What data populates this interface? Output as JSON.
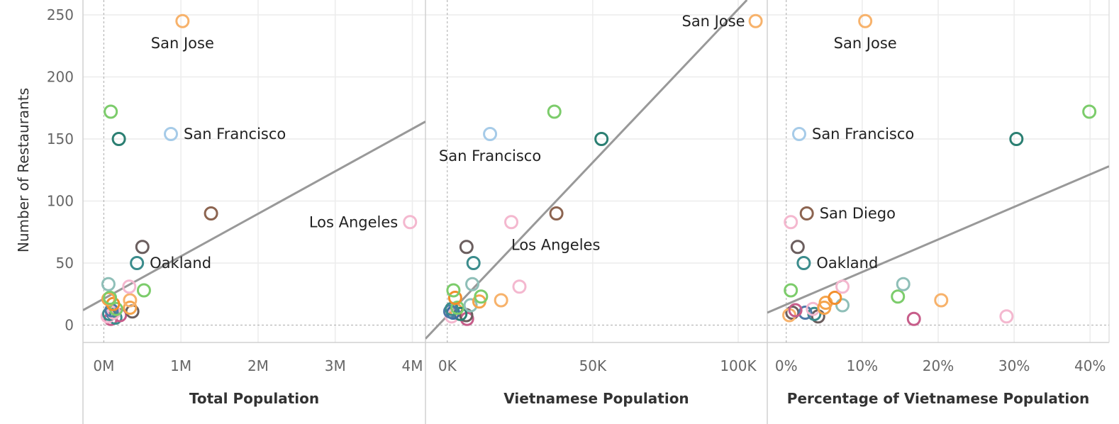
{
  "chart_data": {
    "type": "scatter",
    "ylabel": "Number of Restaurants",
    "ylim": [
      -14,
      262
    ],
    "y_ticks": [
      "0",
      "50",
      "100",
      "150",
      "200",
      "250"
    ],
    "y_tick_values": [
      0,
      50,
      100,
      150,
      200,
      250
    ],
    "grid": true,
    "marker": "hollow circle",
    "panels": [
      {
        "xlabel": "Total Population",
        "xlim": [
          -270000,
          4170000
        ],
        "x_ticks": [
          "0M",
          "1M",
          "2M",
          "3M",
          "4M"
        ],
        "x_tick_values": [
          0,
          1000000,
          2000000,
          3000000,
          4000000
        ],
        "trend_line": [
          [
            -270000,
            12
          ],
          [
            4170000,
            164
          ]
        ],
        "points": [
          {
            "x": 1020000,
            "y": 245,
            "color": "#f7b26b",
            "label": "San Jose"
          },
          {
            "x": 870000,
            "y": 154,
            "color": "#a6cbe8",
            "label": "San Francisco"
          },
          {
            "x": 3970000,
            "y": 83,
            "color": "#f4b8cf",
            "label": "Los Angeles"
          },
          {
            "x": 430000,
            "y": 50,
            "color": "#3b8c8c",
            "label": "Oakland"
          },
          {
            "x": 90000,
            "y": 172,
            "color": "#7ccc6b",
            "label": ""
          },
          {
            "x": 195000,
            "y": 150,
            "color": "#2b7f72",
            "label": ""
          },
          {
            "x": 1390000,
            "y": 90,
            "color": "#8c6450",
            "label": ""
          },
          {
            "x": 500000,
            "y": 63,
            "color": "#6b5e5e",
            "label": ""
          },
          {
            "x": 60000,
            "y": 33,
            "color": "#8fbfb8",
            "label": ""
          },
          {
            "x": 330000,
            "y": 31,
            "color": "#f4b8cf",
            "label": ""
          },
          {
            "x": 520000,
            "y": 28,
            "color": "#7ccc6b",
            "label": ""
          },
          {
            "x": 80000,
            "y": 22,
            "color": "#7ccc6b",
            "label": ""
          },
          {
            "x": 60000,
            "y": 21,
            "color": "#f5a44c",
            "label": ""
          },
          {
            "x": 340000,
            "y": 20,
            "color": "#f7b26b",
            "label": ""
          },
          {
            "x": 120000,
            "y": 17,
            "color": "#f28e2b",
            "label": ""
          },
          {
            "x": 340000,
            "y": 14,
            "color": "#f5a44c",
            "label": ""
          },
          {
            "x": 160000,
            "y": 13,
            "color": "#7ccc6b",
            "label": ""
          },
          {
            "x": 370000,
            "y": 11,
            "color": "#6b5e5e",
            "label": ""
          },
          {
            "x": 100000,
            "y": 12,
            "color": "#4e79a7",
            "label": ""
          },
          {
            "x": 130000,
            "y": 10,
            "color": "#f4b8cf",
            "label": ""
          },
          {
            "x": 70000,
            "y": 9,
            "color": "#3b8c8c",
            "label": ""
          },
          {
            "x": 210000,
            "y": 8,
            "color": "#c75d8a",
            "label": ""
          },
          {
            "x": 50000,
            "y": 7,
            "color": "#f4b8cf",
            "label": ""
          },
          {
            "x": 150000,
            "y": 6,
            "color": "#3b8c8c",
            "label": ""
          },
          {
            "x": 90000,
            "y": 5,
            "color": "#c75d8a",
            "label": ""
          },
          {
            "x": 110000,
            "y": 10,
            "color": "#3d6fa3",
            "label": ""
          }
        ]
      },
      {
        "xlabel": "Vietnamese Population",
        "xlim": [
          -7500,
          110000
        ],
        "x_ticks": [
          "0K",
          "50K",
          "100K"
        ],
        "x_tick_values": [
          0,
          50000,
          100000
        ],
        "trend_line": [
          [
            -7500,
            -11
          ],
          [
            103000,
            262
          ]
        ],
        "points": [
          {
            "x": 106000,
            "y": 245,
            "color": "#f7b26b",
            "label": "San Jose"
          },
          {
            "x": 14700,
            "y": 154,
            "color": "#a6cbe8",
            "label": "San Francisco"
          },
          {
            "x": 22000,
            "y": 83,
            "color": "#f4b8cf",
            "label": "Los Angeles"
          },
          {
            "x": 36800,
            "y": 172,
            "color": "#7ccc6b",
            "label": ""
          },
          {
            "x": 53000,
            "y": 150,
            "color": "#2b7f72",
            "label": ""
          },
          {
            "x": 37500,
            "y": 90,
            "color": "#8c6450",
            "label": ""
          },
          {
            "x": 6600,
            "y": 63,
            "color": "#6b5e5e",
            "label": ""
          },
          {
            "x": 9000,
            "y": 50,
            "color": "#3b8c8c",
            "label": ""
          },
          {
            "x": 8600,
            "y": 33,
            "color": "#8fbfb8",
            "label": ""
          },
          {
            "x": 24800,
            "y": 31,
            "color": "#f4b8cf",
            "label": ""
          },
          {
            "x": 2100,
            "y": 28,
            "color": "#7ccc6b",
            "label": ""
          },
          {
            "x": 11600,
            "y": 23,
            "color": "#7ccc6b",
            "label": ""
          },
          {
            "x": 2700,
            "y": 22,
            "color": "#f28e2b",
            "label": ""
          },
          {
            "x": 18500,
            "y": 20,
            "color": "#f7b26b",
            "label": ""
          },
          {
            "x": 11000,
            "y": 19,
            "color": "#f5a44c",
            "label": ""
          },
          {
            "x": 8000,
            "y": 16,
            "color": "#8fbfb8",
            "label": ""
          },
          {
            "x": 3500,
            "y": 14,
            "color": "#7ccc6b",
            "label": ""
          },
          {
            "x": 1500,
            "y": 13,
            "color": "#3b8c8c",
            "label": ""
          },
          {
            "x": 1000,
            "y": 11,
            "color": "#4e79a7",
            "label": ""
          },
          {
            "x": 2000,
            "y": 10,
            "color": "#3d6fa3",
            "label": ""
          },
          {
            "x": 4500,
            "y": 9,
            "color": "#2b7f72",
            "label": ""
          },
          {
            "x": 6500,
            "y": 8,
            "color": "#6b5e5e",
            "label": ""
          },
          {
            "x": 1500,
            "y": 7,
            "color": "#f4b8cf",
            "label": ""
          },
          {
            "x": 6800,
            "y": 5,
            "color": "#c75d8a",
            "label": ""
          },
          {
            "x": 3000,
            "y": 12,
            "color": "#f5a44c",
            "label": ""
          }
        ]
      },
      {
        "xlabel": "Percentage of Vietnamese Population",
        "xlim": [
          -0.025,
          0.425
        ],
        "x_ticks": [
          "0%",
          "10%",
          "20%",
          "30%",
          "40%"
        ],
        "x_tick_values": [
          0,
          0.1,
          0.2,
          0.3,
          0.4
        ],
        "trend_line": [
          [
            -0.025,
            10
          ],
          [
            0.425,
            128
          ]
        ],
        "points": [
          {
            "x": 0.104,
            "y": 245,
            "color": "#f7b26b",
            "label": "San Jose"
          },
          {
            "x": 0.017,
            "y": 154,
            "color": "#a6cbe8",
            "label": "San Francisco"
          },
          {
            "x": 0.027,
            "y": 90,
            "color": "#8c6450",
            "label": "San Diego"
          },
          {
            "x": 0.023,
            "y": 50,
            "color": "#3b8c8c",
            "label": "Oakland"
          },
          {
            "x": 0.399,
            "y": 172,
            "color": "#7ccc6b",
            "label": ""
          },
          {
            "x": 0.303,
            "y": 150,
            "color": "#2b7f72",
            "label": ""
          },
          {
            "x": 0.006,
            "y": 83,
            "color": "#f4b8cf",
            "label": ""
          },
          {
            "x": 0.015,
            "y": 63,
            "color": "#6b5e5e",
            "label": ""
          },
          {
            "x": 0.154,
            "y": 33,
            "color": "#8fbfb8",
            "label": ""
          },
          {
            "x": 0.074,
            "y": 31,
            "color": "#f4b8cf",
            "label": ""
          },
          {
            "x": 0.006,
            "y": 28,
            "color": "#7ccc6b",
            "label": ""
          },
          {
            "x": 0.147,
            "y": 23,
            "color": "#7ccc6b",
            "label": ""
          },
          {
            "x": 0.064,
            "y": 22,
            "color": "#f28e2b",
            "label": ""
          },
          {
            "x": 0.204,
            "y": 20,
            "color": "#f7b26b",
            "label": ""
          },
          {
            "x": 0.052,
            "y": 18,
            "color": "#f5a44c",
            "label": ""
          },
          {
            "x": 0.074,
            "y": 16,
            "color": "#8fbfb8",
            "label": ""
          },
          {
            "x": 0.05,
            "y": 14,
            "color": "#f5a44c",
            "label": ""
          },
          {
            "x": 0.035,
            "y": 13,
            "color": "#f4b8cf",
            "label": ""
          },
          {
            "x": 0.012,
            "y": 12,
            "color": "#c75d8a",
            "label": ""
          },
          {
            "x": 0.025,
            "y": 10,
            "color": "#4e79a7",
            "label": ""
          },
          {
            "x": 0.037,
            "y": 9,
            "color": "#3b8c8c",
            "label": ""
          },
          {
            "x": 0.042,
            "y": 7,
            "color": "#6b5e5e",
            "label": ""
          },
          {
            "x": 0.29,
            "y": 7,
            "color": "#f4b8cf",
            "label": ""
          },
          {
            "x": 0.168,
            "y": 5,
            "color": "#c75d8a",
            "label": ""
          },
          {
            "x": 0.004,
            "y": 8,
            "color": "#f7b26b",
            "label": ""
          },
          {
            "x": 0.008,
            "y": 10,
            "color": "#6b5e5e",
            "label": ""
          }
        ]
      }
    ]
  }
}
